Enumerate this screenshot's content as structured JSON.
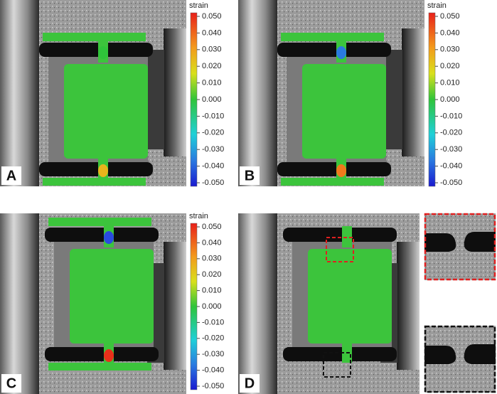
{
  "panels": [
    {
      "label": "A",
      "colorbar": {
        "title": "strain",
        "ticks": [
          "0.050",
          "0.040",
          "0.030",
          "0.020",
          "0.010",
          "0.000",
          "-0.010",
          "-0.020",
          "-0.030",
          "-0.040",
          "-0.050"
        ]
      }
    },
    {
      "label": "B",
      "colorbar": {
        "title": "strain",
        "ticks": [
          "0.050",
          "0.040",
          "0.030",
          "0.020",
          "0.010",
          "0.000",
          "-0.010",
          "-0.020",
          "-0.030",
          "-0.040",
          "-0.050"
        ]
      }
    },
    {
      "label": "C",
      "colorbar": {
        "title": "strain",
        "ticks": [
          "0.050",
          "0.040",
          "0.030",
          "0.020",
          "0.010",
          "0.000",
          "-0.010",
          "-0.020",
          "-0.030",
          "-0.040",
          "-0.050"
        ]
      }
    },
    {
      "label": "D"
    }
  ]
}
